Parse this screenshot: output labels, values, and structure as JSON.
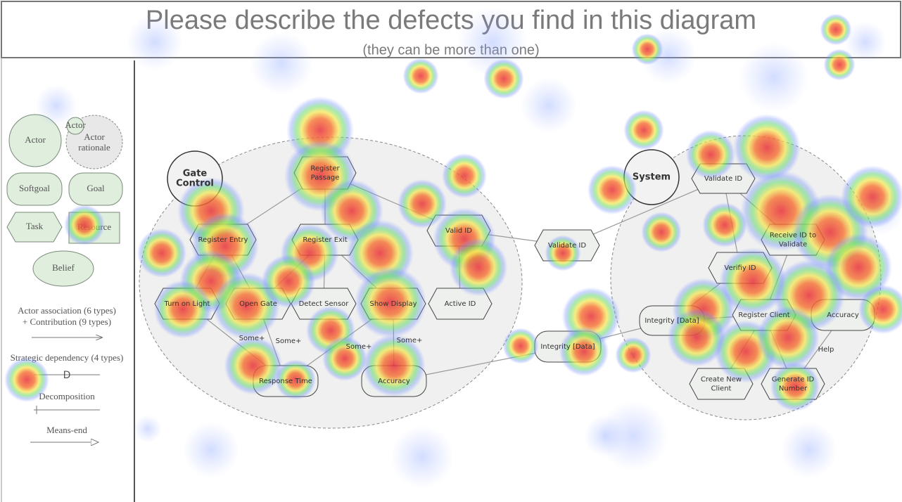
{
  "header": {
    "title": "Please describe the defects you find in this diagram",
    "subtitle": "(they can be more than one)"
  },
  "legend": {
    "actor": "Actor",
    "actor_small": "Actor",
    "actor_rationale": [
      "Actor",
      "rationale"
    ],
    "softgoal": "Softgoal",
    "goal": "Goal",
    "task": "Task",
    "resource": "Resource",
    "belief": "Belief",
    "association": [
      "Actor association (6 types)",
      "+ Contribution (9 types)"
    ],
    "dependency": "Strategic dependency (4 types)",
    "dependency_symbol": "D",
    "decomposition": "Decomposition",
    "means_end": "Means-end"
  },
  "actors": [
    {
      "label": [
        "Gate",
        "Control"
      ]
    },
    {
      "label": [
        "System"
      ]
    }
  ],
  "nodes": [
    {
      "label": [
        "Register",
        "Passage"
      ],
      "kind": "task"
    },
    {
      "label": [
        "Register Entry"
      ],
      "kind": "task"
    },
    {
      "label": [
        "Register Exit"
      ],
      "kind": "task"
    },
    {
      "label": [
        "Valid ID"
      ],
      "kind": "task"
    },
    {
      "label": [
        "Turn on Light"
      ],
      "kind": "task"
    },
    {
      "label": [
        "Open Gate"
      ],
      "kind": "task"
    },
    {
      "label": [
        "Detect Sensor"
      ],
      "kind": "task"
    },
    {
      "label": [
        "Show Display"
      ],
      "kind": "task"
    },
    {
      "label": [
        "Active ID"
      ],
      "kind": "task"
    },
    {
      "label": [
        "Response Time"
      ],
      "kind": "softgoal"
    },
    {
      "label": [
        "Accuracy"
      ],
      "kind": "softgoal"
    },
    {
      "label": [
        "Validate ID"
      ],
      "kind": "task"
    },
    {
      "label": [
        "Integrity [Data]"
      ],
      "kind": "softgoal"
    },
    {
      "label": [
        "Validate ID"
      ],
      "kind": "task"
    },
    {
      "label": [
        "Receive ID to",
        "Validate"
      ],
      "kind": "task"
    },
    {
      "label": [
        "Verifiy ID"
      ],
      "kind": "task"
    },
    {
      "label": [
        "Integrity [Data]"
      ],
      "kind": "softgoal"
    },
    {
      "label": [
        "Register Client"
      ],
      "kind": "task"
    },
    {
      "label": [
        "Accuracy"
      ],
      "kind": "softgoal"
    },
    {
      "label": [
        "Create New",
        "Client"
      ],
      "kind": "task"
    },
    {
      "label": [
        "Generate ID",
        "Number"
      ],
      "kind": "task"
    }
  ],
  "link_labels": [
    "Some+",
    "Some+",
    "Some+",
    "Some+",
    "Help"
  ]
}
